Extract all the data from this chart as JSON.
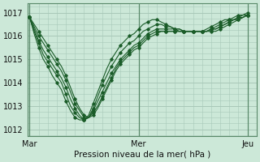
{
  "bg_color": "#cce8d8",
  "grid_color": "#a8c8b8",
  "line_color": "#1a5c28",
  "marker_color": "#1a5c28",
  "xlabel": "Pression niveau de la mer( hPa )",
  "xtick_labels": [
    "Mar",
    "Mer",
    "Jeu"
  ],
  "xtick_positions": [
    0,
    24,
    48
  ],
  "ytick_labels": [
    "1012",
    "1013",
    "1014",
    "1015",
    "1016",
    "1017"
  ],
  "ytick_values": [
    1012,
    1013,
    1014,
    1015,
    1016,
    1017
  ],
  "ylim": [
    1011.7,
    1017.4
  ],
  "xlim": [
    -0.5,
    50
  ],
  "n_points": 49,
  "series": [
    [
      1016.8,
      1016.5,
      1016.2,
      1015.9,
      1015.6,
      1015.3,
      1015.0,
      1014.7,
      1014.3,
      1013.8,
      1013.3,
      1012.9,
      1012.6,
      1012.5,
      1012.6,
      1012.9,
      1013.3,
      1013.7,
      1014.1,
      1014.5,
      1014.8,
      1015.0,
      1015.2,
      1015.4,
      1015.5,
      1015.7,
      1015.9,
      1016.0,
      1016.1,
      1016.2,
      1016.2,
      1016.2,
      1016.2,
      1016.2,
      1016.2,
      1016.2,
      1016.2,
      1016.2,
      1016.2,
      1016.2,
      1016.2,
      1016.2,
      1016.3,
      1016.4,
      1016.5,
      1016.6,
      1016.7,
      1016.8,
      1016.9
    ],
    [
      1016.8,
      1016.4,
      1016.0,
      1015.7,
      1015.4,
      1015.1,
      1014.8,
      1014.5,
      1014.1,
      1013.6,
      1013.1,
      1012.8,
      1012.5,
      1012.5,
      1012.7,
      1013.0,
      1013.4,
      1013.8,
      1014.2,
      1014.6,
      1014.9,
      1015.1,
      1015.3,
      1015.5,
      1015.6,
      1015.8,
      1016.0,
      1016.1,
      1016.2,
      1016.2,
      1016.2,
      1016.2,
      1016.2,
      1016.2,
      1016.2,
      1016.2,
      1016.2,
      1016.2,
      1016.2,
      1016.2,
      1016.3,
      1016.3,
      1016.4,
      1016.5,
      1016.6,
      1016.7,
      1016.7,
      1016.8,
      1016.9
    ],
    [
      1016.8,
      1016.3,
      1015.8,
      1015.4,
      1015.1,
      1014.8,
      1014.5,
      1014.2,
      1013.8,
      1013.3,
      1012.9,
      1012.6,
      1012.4,
      1012.5,
      1012.8,
      1013.2,
      1013.6,
      1014.0,
      1014.4,
      1014.7,
      1015.0,
      1015.2,
      1015.4,
      1015.6,
      1015.7,
      1015.9,
      1016.1,
      1016.2,
      1016.3,
      1016.3,
      1016.3,
      1016.3,
      1016.3,
      1016.2,
      1016.2,
      1016.2,
      1016.2,
      1016.2,
      1016.2,
      1016.2,
      1016.3,
      1016.3,
      1016.4,
      1016.5,
      1016.6,
      1016.7,
      1016.8,
      1016.8,
      1016.9
    ],
    [
      1016.8,
      1016.2,
      1015.7,
      1015.2,
      1014.9,
      1014.6,
      1014.3,
      1014.0,
      1013.5,
      1013.0,
      1012.7,
      1012.5,
      1012.4,
      1012.5,
      1012.9,
      1013.4,
      1013.9,
      1014.3,
      1014.7,
      1015.0,
      1015.3,
      1015.5,
      1015.7,
      1015.8,
      1016.0,
      1016.2,
      1016.3,
      1016.4,
      1016.5,
      1016.5,
      1016.4,
      1016.4,
      1016.3,
      1016.3,
      1016.2,
      1016.2,
      1016.2,
      1016.2,
      1016.2,
      1016.2,
      1016.3,
      1016.4,
      1016.5,
      1016.6,
      1016.7,
      1016.7,
      1016.8,
      1016.9,
      1016.9
    ],
    [
      1016.8,
      1016.1,
      1015.5,
      1015.0,
      1014.7,
      1014.3,
      1014.0,
      1013.7,
      1013.2,
      1012.8,
      1012.5,
      1012.4,
      1012.4,
      1012.6,
      1013.1,
      1013.6,
      1014.1,
      1014.6,
      1015.0,
      1015.3,
      1015.6,
      1015.8,
      1016.0,
      1016.1,
      1016.3,
      1016.5,
      1016.6,
      1016.7,
      1016.7,
      1016.6,
      1016.5,
      1016.4,
      1016.3,
      1016.3,
      1016.2,
      1016.2,
      1016.2,
      1016.2,
      1016.2,
      1016.3,
      1016.4,
      1016.5,
      1016.6,
      1016.7,
      1016.7,
      1016.8,
      1016.9,
      1016.9,
      1017.0
    ]
  ]
}
